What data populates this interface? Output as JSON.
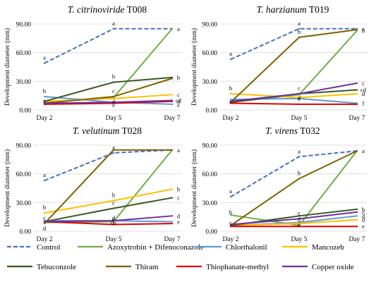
{
  "colors": {
    "Control": "#4472C4",
    "Azoxytrobin + Difenoconazole": "#70AD47",
    "Chlorthalonil": "#5B9BD5",
    "Mancozeb": "#FFC000",
    "Tebuconzole": "#385723",
    "Thiram": "#7F6000",
    "Thiophanate-methyl": "#E00000",
    "Copper oxide": "#7030A0"
  },
  "legend": [
    "Control",
    "Azoxytrobin + Difenoconazole",
    "Chlorthalonil",
    "Mancozeb",
    "Tebuconzole",
    "Thiram",
    "Thiophanate-methyl",
    "Copper oxide"
  ],
  "chart_data": [
    {
      "type": "line",
      "title_species": "T. citrinoviride",
      "title_strain": " T008",
      "ylabel": "Development diameter (mm)",
      "categories": [
        "Day 2",
        "Day 5",
        "Day 7"
      ],
      "ylim": [
        0,
        90
      ],
      "yticks": [
        "0.00",
        "30.00",
        "60.00",
        "90.00"
      ],
      "series": [
        {
          "name": "Control",
          "values": [
            49,
            85,
            85
          ],
          "letters": [
            "a",
            "a",
            ""
          ]
        },
        {
          "name": "Azoxytrobin + Difenoconazole",
          "values": [
            8,
            13,
            85
          ],
          "letters": [
            "",
            "",
            "a"
          ]
        },
        {
          "name": "Chlorthalonil",
          "values": [
            14,
            8,
            6
          ],
          "letters": [
            "b",
            "",
            ""
          ]
        },
        {
          "name": "Mancozeb",
          "values": [
            9,
            12,
            16
          ],
          "letters": [
            "",
            "",
            "c"
          ]
        },
        {
          "name": "Tebuconzole",
          "values": [
            9,
            29,
            34
          ],
          "letters": [
            "",
            "b",
            "b"
          ]
        },
        {
          "name": "Thiram",
          "values": [
            7,
            14,
            33
          ],
          "letters": [
            "",
            "c",
            ""
          ]
        },
        {
          "name": "Thiophanate-methyl",
          "values": [
            6,
            7,
            9
          ],
          "letters": [
            "",
            "",
            "d"
          ]
        },
        {
          "name": "Copper oxide",
          "values": [
            7,
            8,
            10
          ],
          "letters": [
            "",
            "",
            "cd"
          ]
        }
      ],
      "extra_labels": [
        {
          "cat": 0,
          "y": 10,
          "text": "c"
        },
        {
          "cat": 1,
          "y": 9,
          "text": "d"
        },
        {
          "cat": 1,
          "y": 5,
          "text": "e"
        },
        {
          "cat": 2,
          "y": 5,
          "text": "e"
        }
      ]
    },
    {
      "type": "line",
      "title_species": "T. harzianum",
      "title_strain": " T019",
      "ylabel": "Development diameter (mm)",
      "categories": [
        "Day 2",
        "Day 5",
        "Day 7"
      ],
      "ylim": [
        0,
        90
      ],
      "yticks": [
        "0.00",
        "30.00",
        "60.00",
        "90.00"
      ],
      "series": [
        {
          "name": "Control",
          "values": [
            53,
            85,
            85
          ],
          "letters": [
            "a",
            "a",
            "a"
          ]
        },
        {
          "name": "Azoxytrobin + Difenoconazole",
          "values": [
            8,
            16,
            83
          ],
          "letters": [
            "",
            "",
            "b"
          ]
        },
        {
          "name": "Chlorthalonil",
          "values": [
            11,
            12,
            7
          ],
          "letters": [
            "",
            "",
            "f"
          ]
        },
        {
          "name": "Mancozeb",
          "values": [
            17,
            13,
            17
          ],
          "letters": [
            "b",
            "",
            "d"
          ]
        },
        {
          "name": "Tebuconzole",
          "values": [
            8,
            17,
            21
          ],
          "letters": [
            "",
            "",
            "cd"
          ]
        },
        {
          "name": "Thiram",
          "values": [
            8,
            76,
            84
          ],
          "letters": [
            "",
            "b",
            ""
          ]
        },
        {
          "name": "Thiophanate-methyl",
          "values": [
            7,
            6,
            6
          ],
          "letters": [
            "",
            "e",
            ""
          ]
        },
        {
          "name": "Copper oxide",
          "values": [
            9,
            17,
            28
          ],
          "letters": [
            "",
            "c",
            "c"
          ]
        }
      ],
      "extra_labels": [
        {
          "cat": 0,
          "y": 9,
          "text": "c"
        },
        {
          "cat": 1,
          "y": 13,
          "text": "d"
        }
      ]
    },
    {
      "type": "line",
      "title_species": "T. velutinum",
      "title_strain": " T028",
      "ylabel": "Development diameter (mm)",
      "categories": [
        "Day 2",
        "Day 5",
        "Day 7"
      ],
      "ylim": [
        0,
        90
      ],
      "yticks": [
        "0.00",
        "30.00",
        "60.00",
        "90.00"
      ],
      "series": [
        {
          "name": "Control",
          "values": [
            53,
            82,
            85
          ],
          "letters": [
            "a",
            "a",
            ""
          ]
        },
        {
          "name": "Azoxytrobin + Difenoconazole",
          "values": [
            9,
            10,
            85
          ],
          "letters": [
            "",
            "",
            "a"
          ]
        },
        {
          "name": "Chlorthalonil",
          "values": [
            11,
            11,
            10
          ],
          "letters": [
            "",
            "",
            "e"
          ]
        },
        {
          "name": "Mancozeb",
          "values": [
            19,
            32,
            44
          ],
          "letters": [
            "b",
            "b",
            "b"
          ]
        },
        {
          "name": "Tebuconzole",
          "values": [
            10,
            24,
            35
          ],
          "letters": [
            "",
            "c",
            "c"
          ]
        },
        {
          "name": "Thiram",
          "values": [
            8,
            85,
            85
          ],
          "letters": [
            "",
            "",
            ""
          ]
        },
        {
          "name": "Thiophanate-methyl",
          "values": [
            10,
            7,
            8
          ],
          "letters": [
            "",
            "e",
            ""
          ]
        },
        {
          "name": "Copper oxide",
          "values": [
            10,
            11,
            16
          ],
          "letters": [
            "",
            "",
            "d"
          ]
        }
      ],
      "extra_labels": [
        {
          "cat": 0,
          "y": 14,
          "text": "c"
        },
        {
          "cat": 0,
          "y": 3,
          "text": "d"
        },
        {
          "cat": 1,
          "y": 14,
          "text": "d"
        },
        {
          "cat": 1,
          "y": 9,
          "text": "de"
        }
      ]
    },
    {
      "type": "line",
      "title_species": "T. virens",
      "title_strain": " T032",
      "ylabel": "Development diameter (mm)",
      "categories": [
        "Day 2",
        "Day 5",
        "Day 7"
      ],
      "ylim": [
        0,
        90
      ],
      "yticks": [
        "0.00",
        "30.00",
        "60.00",
        "90.00"
      ],
      "series": [
        {
          "name": "Control",
          "values": [
            36,
            78,
            84
          ],
          "letters": [
            "a",
            "a",
            "a"
          ]
        },
        {
          "name": "Azoxytrobin + Difenoconazole",
          "values": [
            17,
            6,
            84
          ],
          "letters": [
            "",
            "",
            ""
          ]
        },
        {
          "name": "Chlorthalonil",
          "values": [
            6,
            9,
            16
          ],
          "letters": [
            "",
            "",
            "d"
          ]
        },
        {
          "name": "Mancozeb",
          "values": [
            6,
            8,
            12
          ],
          "letters": [
            "",
            "",
            "d"
          ]
        },
        {
          "name": "Tebuconzole",
          "values": [
            6,
            16,
            23
          ],
          "letters": [
            "",
            "",
            "b"
          ]
        },
        {
          "name": "Thiram",
          "values": [
            6,
            55,
            84
          ],
          "letters": [
            "",
            "b",
            ""
          ]
        },
        {
          "name": "Thiophanate-methyl",
          "values": [
            5,
            5,
            5
          ],
          "letters": [
            "",
            "",
            "e"
          ]
        },
        {
          "name": "Copper oxide",
          "values": [
            7,
            13,
            20
          ],
          "letters": [
            "",
            "",
            "c"
          ]
        }
      ],
      "extra_labels": [
        {
          "cat": 0,
          "y": 20,
          "text": "b"
        },
        {
          "cat": 0,
          "y": 9,
          "text": "c"
        },
        {
          "cat": 1,
          "y": 19,
          "text": "c"
        },
        {
          "cat": 1,
          "y": 12,
          "text": "d"
        },
        {
          "cat": 1,
          "y": 7,
          "text": "e"
        }
      ]
    }
  ]
}
